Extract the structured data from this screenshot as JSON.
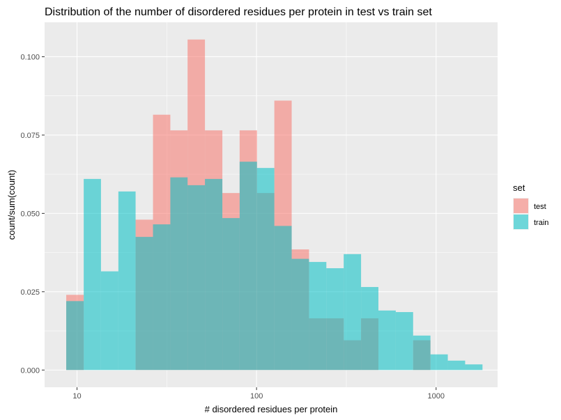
{
  "chart_data": {
    "type": "bar",
    "title": "Distribution of the number of disordered residues per protein in test vs train set",
    "xlabel": "# disordered residues per protein",
    "ylabel": "count/sum(count)",
    "x_scale": "log10",
    "xlim": [
      6.6,
      2200
    ],
    "ylim": [
      -0.0055,
      0.111
    ],
    "x_ticks": [
      10,
      100,
      1000
    ],
    "x_tick_labels": [
      "10",
      "100",
      "1000"
    ],
    "y_ticks": [
      0,
      0.025,
      0.05,
      0.075,
      0.1
    ],
    "y_tick_labels": [
      "0.000",
      "0.025",
      "0.050",
      "0.075",
      "0.100"
    ],
    "grid": true,
    "legend": {
      "title": "set",
      "position": "right"
    },
    "bin_edges": [
      8.71,
      10.9,
      13.6,
      17.0,
      21.2,
      26.5,
      33.1,
      41.3,
      51.6,
      64.5,
      80.5,
      100.6,
      125.6,
      156.9,
      196.0,
      244.8,
      305.8,
      382.0,
      477.2,
      596.1,
      744.6,
      930.1,
      1161.9,
      1451.4,
      1813.0
    ],
    "series": [
      {
        "name": "test",
        "color": "#F8766D",
        "values": [
          0.024,
          0.0,
          0.0,
          0.0,
          0.048,
          0.0815,
          0.0765,
          0.1055,
          0.0765,
          0.0565,
          0.0765,
          0.0565,
          0.086,
          0.0385,
          0.0165,
          0.0165,
          0.0095,
          0.0165,
          0.0,
          0.0,
          0.0095,
          0.0,
          0.0,
          0.0,
          0.0
        ]
      },
      {
        "name": "train",
        "color": "#00BFC4",
        "values": [
          0.022,
          0.061,
          0.0315,
          0.057,
          0.0425,
          0.0465,
          0.0615,
          0.059,
          0.061,
          0.0485,
          0.0665,
          0.0645,
          0.046,
          0.0355,
          0.0345,
          0.0325,
          0.037,
          0.0265,
          0.019,
          0.0185,
          0.011,
          0.005,
          0.003,
          0.0018,
          0.0015
        ]
      }
    ]
  }
}
